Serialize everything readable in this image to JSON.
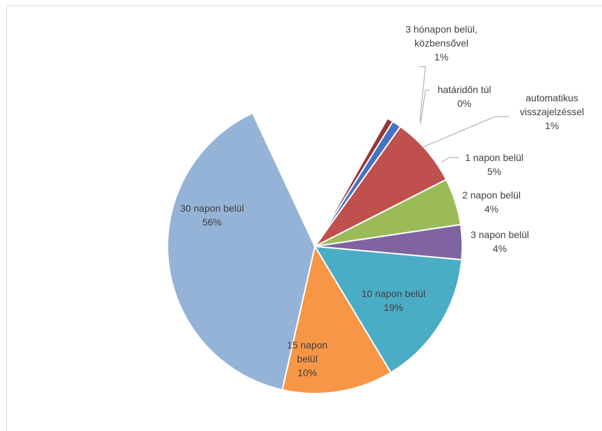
{
  "chart_data": {
    "type": "pie",
    "title": "",
    "series": [
      {
        "name": "",
        "categories": [
          "automatikus visszajelzéssel",
          "1 napon belül",
          "2 napon belül",
          "3 napon belül",
          "10 napon belül",
          "15 napon belül",
          "30 napon belül",
          "3 hónapon belül, közbensővel",
          "határidőn túl"
        ],
        "values": [
          1,
          5,
          4,
          4,
          19,
          10,
          56,
          1,
          0
        ],
        "labels": [
          "1%",
          "5%",
          "4%",
          "4%",
          "19%",
          "10%",
          "56%",
          "1%",
          "0%"
        ],
        "colors": [
          "#4472C4",
          "#C0504D",
          "#9BBB59",
          "#8064A2",
          "#4BACC6",
          "#F79646",
          "#95B3D7",
          "#953735",
          "#7F7F7F"
        ]
      }
    ],
    "legend": "none",
    "label_lines": {
      "s0": [
        "automatikus",
        "visszajelzéssel"
      ],
      "s1": [
        "1 napon belül"
      ],
      "s2": [
        "2 napon belül"
      ],
      "s3": [
        "3 napon belül"
      ],
      "s4": [
        "10 napon belül"
      ],
      "s5": [
        "15 napon",
        "belül"
      ],
      "s6": [
        "30 napon belül"
      ],
      "s7": [
        "3 hónapon belül,",
        "közbensővel"
      ],
      "s8": [
        "határidőn túl"
      ]
    }
  }
}
